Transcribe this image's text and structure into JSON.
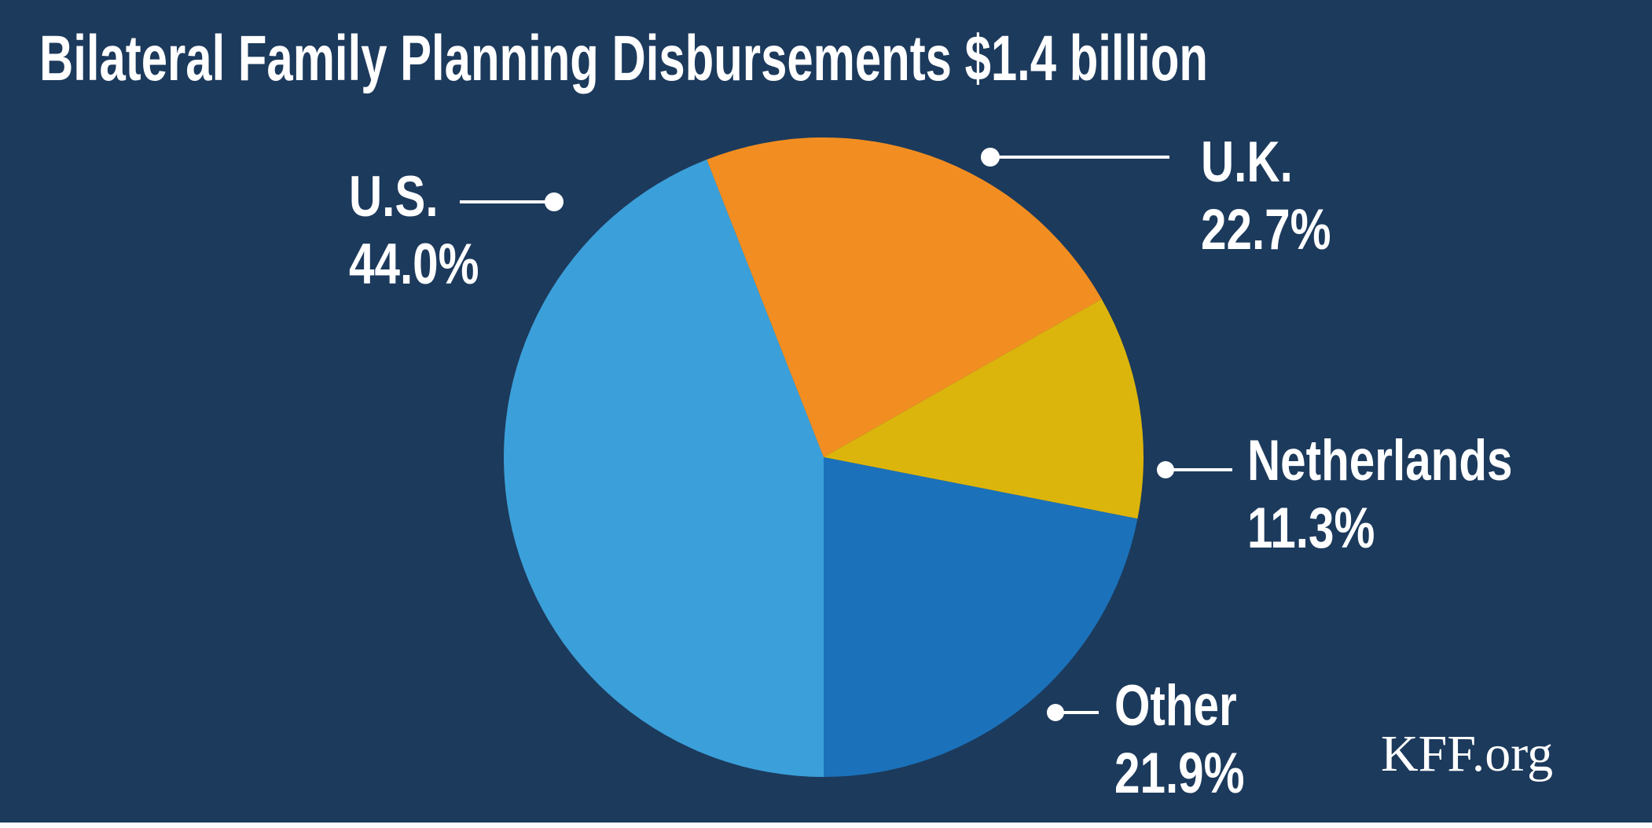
{
  "title": "Bilateral Family Planning Disbursements $1.4 billion",
  "source": "KFF.org",
  "colors": {
    "background": "#1C3A5C",
    "text": "#FFFFFF",
    "us_slice": "#3BA0DA",
    "uk_slice": "#F28E21",
    "netherlands_slice": "#DCB50C",
    "other_slice": "#1B72BA"
  },
  "chart_data": {
    "type": "pie",
    "title": "Bilateral Family Planning Disbursements $1.4 billion",
    "total_label": "$1.4 billion",
    "start_angle_deg_clockwise_from_top": 180,
    "direction": "clockwise",
    "legend_position": "callout-labels",
    "slices": [
      {
        "id": "us",
        "label": "U.S.",
        "value": 44.0,
        "display": "44.0%",
        "color": "#3BA0DA"
      },
      {
        "id": "uk",
        "label": "U.K.",
        "value": 22.7,
        "display": "22.7%",
        "color": "#F28E21"
      },
      {
        "id": "netherlands",
        "label": "Netherlands",
        "value": 11.3,
        "display": "11.3%",
        "color": "#DCB50C"
      },
      {
        "id": "other",
        "label": "Other",
        "value": 21.9,
        "display": "21.9%",
        "color": "#1B72BA"
      }
    ]
  }
}
